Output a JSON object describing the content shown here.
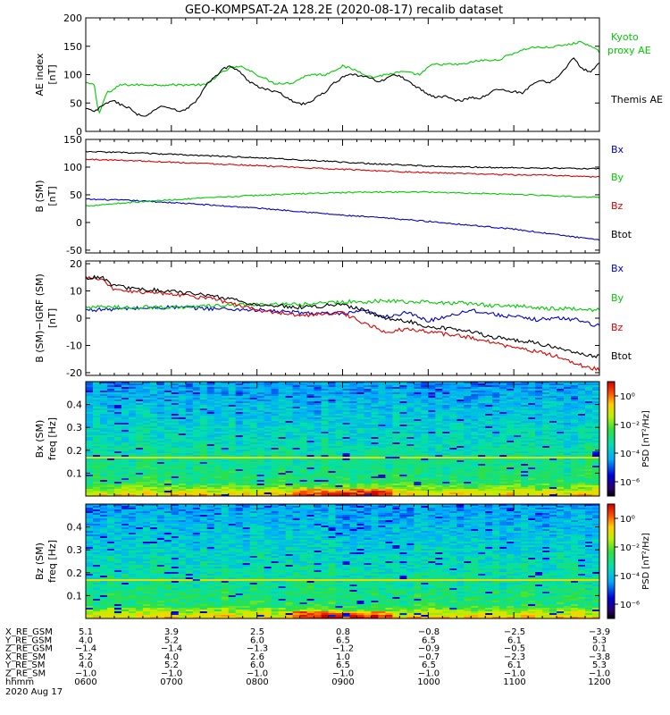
{
  "title": "GEO-KOMPSAT-2A 128.2E (2020-08-17) recalib dataset",
  "chart_data": [
    {
      "type": "line",
      "ylabel": [
        "AE index",
        "[nT]"
      ],
      "ylim": [
        0,
        200
      ],
      "yticks": [
        0,
        50,
        100,
        150,
        200
      ],
      "x_range_hours": [
        6,
        12
      ],
      "legend": [
        "Kyoto",
        "proxy AE",
        "Themis AE"
      ],
      "series": [
        {
          "name": "Kyoto proxy AE",
          "color": "#00cc00",
          "x": [
            6.0,
            6.1,
            6.15,
            6.25,
            6.3,
            6.4,
            6.55,
            6.75,
            7.0,
            7.2,
            7.4,
            7.55,
            7.7,
            7.85,
            8.0,
            8.2,
            8.4,
            8.6,
            8.8,
            9.0,
            9.15,
            9.35,
            9.5,
            9.7,
            9.9,
            10.05,
            10.2,
            10.4,
            10.6,
            10.8,
            11.0,
            11.2,
            11.4,
            11.6,
            11.8,
            12.0
          ],
          "y": [
            85,
            82,
            30,
            70,
            70,
            82,
            82,
            82,
            82,
            82,
            82,
            100,
            113,
            113,
            100,
            85,
            85,
            100,
            100,
            115,
            108,
            95,
            100,
            105,
            100,
            118,
            118,
            118,
            125,
            125,
            138,
            148,
            148,
            152,
            158,
            140
          ]
        },
        {
          "name": "Themis AE",
          "color": "#000000",
          "x": [
            6.0,
            6.1,
            6.2,
            6.3,
            6.4,
            6.5,
            6.6,
            6.7,
            6.8,
            6.9,
            7.0,
            7.1,
            7.2,
            7.3,
            7.4,
            7.5,
            7.6,
            7.7,
            7.8,
            7.9,
            8.0,
            8.1,
            8.2,
            8.3,
            8.4,
            8.5,
            8.6,
            8.7,
            8.8,
            8.9,
            9.0,
            9.1,
            9.2,
            9.3,
            9.4,
            9.5,
            9.6,
            9.7,
            9.8,
            9.9,
            10.0,
            10.1,
            10.2,
            10.3,
            10.4,
            10.5,
            10.6,
            10.7,
            10.8,
            10.9,
            11.0,
            11.1,
            11.2,
            11.3,
            11.4,
            11.5,
            11.6,
            11.7,
            11.8,
            11.9,
            12.0
          ],
          "y": [
            40,
            35,
            45,
            55,
            48,
            42,
            30,
            25,
            38,
            45,
            40,
            35,
            42,
            55,
            80,
            95,
            110,
            115,
            105,
            88,
            80,
            75,
            70,
            65,
            55,
            48,
            50,
            60,
            70,
            85,
            95,
            100,
            98,
            95,
            88,
            92,
            100,
            95,
            85,
            75,
            65,
            60,
            62,
            55,
            55,
            60,
            58,
            65,
            75,
            72,
            70,
            68,
            80,
            90,
            85,
            95,
            110,
            130,
            110,
            105,
            120
          ]
        }
      ]
    },
    {
      "type": "line",
      "ylabel": [
        "B (SM)",
        "[nT]"
      ],
      "ylim": [
        -55,
        150
      ],
      "yticks": [
        -50,
        0,
        50,
        100,
        150
      ],
      "x_range_hours": [
        6,
        12
      ],
      "legend": [
        "Bx",
        "By",
        "Bz",
        "Btot"
      ],
      "series": [
        {
          "name": "Bx",
          "color": "#0000cc",
          "x": [
            6,
            6.5,
            7,
            7.5,
            8,
            8.5,
            9,
            9.5,
            10,
            10.5,
            11,
            11.5,
            12
          ],
          "y": [
            42,
            40,
            36,
            31,
            26,
            20,
            13,
            8,
            2,
            -5,
            -12,
            -22,
            -32
          ]
        },
        {
          "name": "By",
          "color": "#00cc00",
          "x": [
            6,
            6.5,
            7,
            7.5,
            8,
            8.5,
            9,
            9.5,
            10,
            10.5,
            11,
            11.5,
            12
          ],
          "y": [
            30,
            36,
            41,
            45,
            49,
            52,
            54,
            55,
            55,
            53,
            51,
            48,
            45
          ]
        },
        {
          "name": "Bz",
          "color": "#dd0000",
          "x": [
            6,
            6.5,
            7,
            7.5,
            8,
            8.5,
            9,
            9.5,
            10,
            10.5,
            11,
            11.5,
            12
          ],
          "y": [
            114,
            112,
            109,
            106,
            103,
            99,
            96,
            93,
            90,
            88,
            86,
            85,
            82
          ]
        },
        {
          "name": "Btot",
          "color": "#000000",
          "x": [
            6,
            6.5,
            7,
            7.5,
            8,
            8.5,
            9,
            9.5,
            10,
            10.5,
            11,
            11.5,
            12
          ],
          "y": [
            128,
            126,
            123,
            120,
            117,
            113,
            109,
            105,
            102,
            100,
            99,
            98,
            97
          ]
        }
      ]
    },
    {
      "type": "line",
      "ylabel": [
        "B (SM)−IGRF (SM)",
        "[nT]"
      ],
      "ylim": [
        -21,
        21
      ],
      "yticks": [
        -20,
        -10,
        0,
        10,
        20
      ],
      "x_range_hours": [
        6,
        12
      ],
      "legend": [
        "Bx",
        "By",
        "Bz",
        "Btot"
      ],
      "series": [
        {
          "name": "Bx",
          "color": "#0000cc",
          "x": [
            6,
            6.5,
            7,
            7.5,
            8,
            8.5,
            9,
            9.25,
            9.5,
            9.75,
            10,
            10.25,
            10.5,
            10.75,
            11,
            11.25,
            11.5,
            11.75,
            12
          ],
          "y": [
            3,
            3.5,
            4,
            3.5,
            3,
            2,
            1.5,
            2.5,
            0.5,
            2,
            -1,
            1,
            3,
            1.5,
            0.5,
            -0.5,
            0,
            -0.5,
            -3
          ]
        },
        {
          "name": "By",
          "color": "#00cc00",
          "x": [
            6,
            6.5,
            7,
            7.5,
            8,
            8.5,
            9,
            9.25,
            9.5,
            9.75,
            10,
            10.25,
            10.5,
            10.75,
            11,
            11.25,
            11.5,
            11.75,
            12
          ],
          "y": [
            4,
            4,
            4,
            4.5,
            5,
            5,
            6,
            6,
            6.5,
            6,
            6,
            5.5,
            5.5,
            4.5,
            4.5,
            4,
            3.5,
            3.5,
            3
          ]
        },
        {
          "name": "Bz",
          "color": "#dd0000",
          "x": [
            6,
            6.2,
            6.3,
            6.5,
            7,
            7.5,
            8,
            8.5,
            9,
            9.25,
            9.5,
            9.75,
            10,
            10.25,
            10.5,
            10.75,
            11,
            11.25,
            11.5,
            11.75,
            12
          ],
          "y": [
            15,
            14,
            11,
            10,
            9,
            7,
            3,
            1,
            2,
            -2,
            -5,
            -4,
            -5,
            -6,
            -7,
            -9,
            -11,
            -12,
            -14,
            -17,
            -19
          ]
        },
        {
          "name": "Btot",
          "color": "#000000",
          "x": [
            6,
            6.2,
            6.3,
            6.5,
            7,
            7.5,
            8,
            8.5,
            9,
            9.25,
            9.5,
            9.75,
            10,
            10.25,
            10.5,
            10.75,
            11,
            11.25,
            11.5,
            11.75,
            12
          ],
          "y": [
            15,
            15,
            12,
            11,
            10,
            8,
            5,
            4,
            5,
            3,
            0,
            -1,
            -3,
            -4,
            -5,
            -7,
            -8,
            -9,
            -11,
            -13,
            -14
          ]
        }
      ]
    },
    {
      "type": "heatmap",
      "ylabel": [
        "Bx (SM)",
        "freq [Hz]"
      ],
      "ylim": [
        0,
        0.5
      ],
      "yticks": [
        0.1,
        0.2,
        0.3,
        0.4
      ],
      "yticklabels": [
        "0.1",
        "0.2",
        "0.3",
        "0.4"
      ],
      "x_range_hours": [
        6,
        12
      ],
      "colorbar": {
        "label": "PSD [nT²/Hz]",
        "ticks": [
          "10⁰",
          "10⁻²",
          "10⁻⁴",
          "10⁻⁶"
        ],
        "log_range": [
          -7,
          1
        ]
      },
      "features": {
        "line_hz": 0.167,
        "hot_band_top_hz": 0.03,
        "hot_time_hours": 9.0
      }
    },
    {
      "type": "heatmap",
      "ylabel": [
        "Bz (SM)",
        "freq [Hz]"
      ],
      "ylim": [
        0,
        0.5
      ],
      "yticks": [
        0.1,
        0.2,
        0.3,
        0.4
      ],
      "yticklabels": [
        "0.1",
        "0.2",
        "0.3",
        "0.4"
      ],
      "x_range_hours": [
        6,
        12
      ],
      "colorbar": {
        "label": "PSD [nT²/Hz]",
        "ticks": [
          "10⁰",
          "10⁻²",
          "10⁻⁴",
          "10⁻⁶"
        ],
        "log_range": [
          -7,
          1
        ]
      },
      "features": {
        "line_hz": 0.167,
        "hot_band_top_hz": 0.03,
        "hot_time_hours": 9.0
      }
    }
  ],
  "orbit_table": {
    "rows": [
      {
        "label": "X_RE_GSM",
        "values": [
          "5.1",
          "3.9",
          "2.5",
          "0.8",
          "−0.8",
          "−2.5",
          "−3.9"
        ]
      },
      {
        "label": "Y_RE_GSM",
        "values": [
          "4.0",
          "5.2",
          "6.0",
          "6.5",
          "6.5",
          "6.1",
          "5.3"
        ]
      },
      {
        "label": "Z_RE_GSM",
        "values": [
          "−1.4",
          "−1.4",
          "−1.3",
          "−1.2",
          "−0.9",
          "−0.5",
          "0.1"
        ]
      },
      {
        "label": "X_RE_SM",
        "values": [
          "5.2",
          "4.0",
          "2.6",
          "1.0",
          "−0.7",
          "−2.3",
          "−3.8"
        ]
      },
      {
        "label": "Y_RE_SM",
        "values": [
          "4.0",
          "5.2",
          "6.0",
          "6.5",
          "6.5",
          "6.1",
          "5.3"
        ]
      },
      {
        "label": "Z_RE_SM",
        "values": [
          "−1.0",
          "−1.0",
          "−1.0",
          "−1.0",
          "−1.0",
          "−1.0",
          "−1.0"
        ]
      },
      {
        "label": "hhmm",
        "values": [
          "0600",
          "0700",
          "0800",
          "0900",
          "1000",
          "1100",
          "1200"
        ]
      }
    ],
    "date": "2020 Aug 17"
  }
}
